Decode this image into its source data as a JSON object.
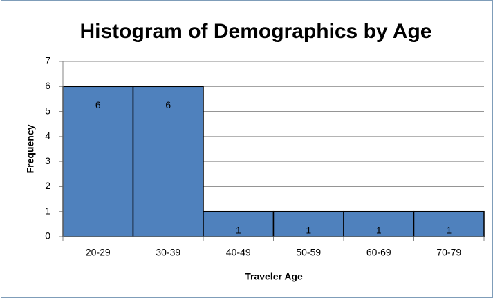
{
  "chart_data": {
    "type": "bar",
    "title": "Histogram of Demographics by Age",
    "x_label": "Traveler Age",
    "y_label": "Frequency",
    "categories": [
      "20-29",
      "30-39",
      "40-49",
      "50-59",
      "60-69",
      "70-79"
    ],
    "values": [
      6,
      6,
      1,
      1,
      1,
      1
    ],
    "color": "#4f81bd",
    "ylim": [
      0,
      7
    ],
    "yticks": [
      0,
      1,
      2,
      3,
      4,
      5,
      6,
      7
    ],
    "grid": true,
    "data_labels": true
  }
}
